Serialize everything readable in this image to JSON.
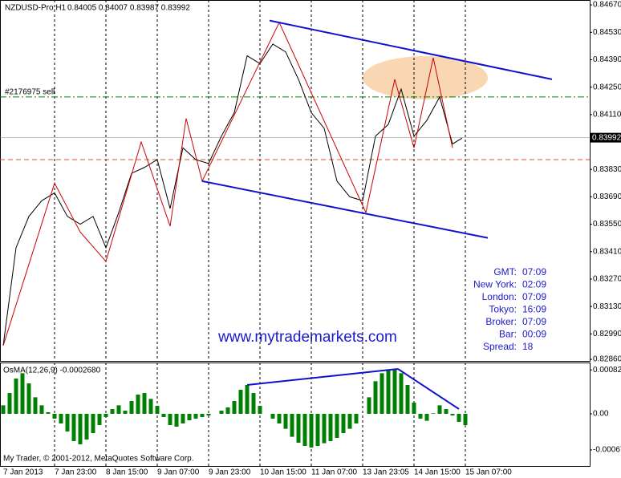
{
  "chart_data": [
    {
      "type": "line",
      "title": "NZDUSD-Pro,H1",
      "subtitle": "0.84005 0.84007 0.83987 0.83992",
      "xlim": [
        -1,
        182.75
      ],
      "ylim": [
        0.82852,
        0.84695
      ],
      "grid": true,
      "xticks": [
        {
          "value": 0,
          "label": "7 Jan 2013"
        },
        {
          "value": 16,
          "label": "7 Jan 23:00"
        },
        {
          "value": 32,
          "label": "8 Jan 15:00"
        },
        {
          "value": 48,
          "label": "9 Jan 07:00"
        },
        {
          "value": 64,
          "label": "9 Jan 23:00"
        },
        {
          "value": 80,
          "label": "10 Jan 15:00"
        },
        {
          "value": 96,
          "label": "11 Jan 07:00"
        },
        {
          "value": 112,
          "label": "13 Jan 23:05"
        },
        {
          "value": 128,
          "label": "14 Jan 15:00"
        },
        {
          "value": 144,
          "label": "15 Jan 07:00"
        }
      ],
      "yticks": [
        {
          "value": 0.8467,
          "label": "0.84670"
        },
        {
          "value": 0.8453,
          "label": "0.84530"
        },
        {
          "value": 0.8439,
          "label": "0.84390"
        },
        {
          "value": 0.8425,
          "label": "0.84250"
        },
        {
          "value": 0.8411,
          "label": "0.84110"
        },
        {
          "value": 0.8383,
          "label": "0.83830"
        },
        {
          "value": 0.8369,
          "label": "0.83690"
        },
        {
          "value": 0.8355,
          "label": "0.83550"
        },
        {
          "value": 0.8341,
          "label": "0.83410"
        },
        {
          "value": 0.8327,
          "label": "0.83270"
        },
        {
          "value": 0.8313,
          "label": "0.83130"
        },
        {
          "value": 0.8299,
          "label": "0.82990"
        },
        {
          "value": 0.8286,
          "label": "0.82860"
        }
      ],
      "last": 0.83992,
      "levels": [
        {
          "name": "#2176975 sell",
          "value": 0.842,
          "color": "#008000"
        },
        {
          "value": 0.8388,
          "color": "#e05020"
        }
      ],
      "series": [
        {
          "color": "#000000",
          "x": [
            0,
            4,
            8,
            12,
            16,
            20,
            24,
            28,
            32,
            36,
            40,
            44,
            48,
            52,
            56,
            60,
            64,
            68,
            72,
            76,
            80,
            84,
            88,
            92,
            96,
            100,
            104,
            108,
            112,
            116,
            120,
            124,
            128,
            132,
            136,
            140,
            143
          ],
          "values": [
            0.8293,
            0.8343,
            0.8359,
            0.8367,
            0.8371,
            0.8359,
            0.8355,
            0.8359,
            0.8343,
            0.8361,
            0.8381,
            0.8384,
            0.8388,
            0.8363,
            0.8394,
            0.8388,
            0.8386,
            0.84,
            0.8412,
            0.8441,
            0.8437,
            0.8447,
            0.8443,
            0.8429,
            0.8412,
            0.8404,
            0.8377,
            0.8369,
            0.8367,
            0.84,
            0.8406,
            0.8424,
            0.84,
            0.8408,
            0.842,
            0.8396,
            0.8399
          ]
        },
        {
          "color": "#cc0000",
          "x": [
            0,
            16,
            24,
            32,
            43,
            52,
            57,
            62,
            86,
            113,
            122,
            128,
            134,
            140
          ],
          "values": [
            0.8293,
            0.8376,
            0.8351,
            0.8336,
            0.8397,
            0.8354,
            0.8409,
            0.8377,
            0.8458,
            0.8361,
            0.8429,
            0.8394,
            0.844,
            0.8394
          ]
        },
        {
          "color": "#1010d0",
          "x": [
            83,
            171
          ],
          "values": [
            0.8459,
            0.8429
          ]
        },
        {
          "color": "#1010d0",
          "x": [
            62,
            151
          ],
          "values": [
            0.8377,
            0.8348
          ]
        }
      ]
    },
    {
      "type": "bar",
      "title": "OsMA(12,26,9) -0.0002680",
      "color": "#008000",
      "xlim": [
        -1,
        182.75
      ],
      "ylim": [
        -0.00099,
        0.00096
      ],
      "yticks": [
        0.000823,
        {
          "value": 0,
          "label": "0.00"
        },
        -0.000674
      ],
      "x": [
        0,
        2,
        4,
        6,
        8,
        10,
        12,
        14,
        16,
        18,
        20,
        22,
        24,
        26,
        28,
        30,
        32,
        34,
        36,
        38,
        40,
        42,
        44,
        46,
        48,
        50,
        52,
        54,
        56,
        58,
        60,
        62,
        64,
        66,
        68,
        70,
        72,
        74,
        76,
        78,
        80,
        82,
        84,
        86,
        88,
        90,
        92,
        94,
        96,
        98,
        100,
        102,
        104,
        106,
        108,
        110,
        112,
        114,
        116,
        118,
        120,
        122,
        124,
        126,
        128,
        130,
        132,
        134,
        136,
        138,
        140,
        142,
        144
      ],
      "values": [
        0.00016,
        0.00039,
        0.00066,
        0.00076,
        0.00057,
        0.00031,
        0.00016,
        3e-05,
        -9e-05,
        -0.00018,
        -0.00033,
        -0.00051,
        -0.00057,
        -0.00048,
        -0.00036,
        -0.00021,
        -6e-05,
        9e-05,
        0.00016,
        6e-05,
        0.00024,
        0.00036,
        0.00039,
        0.00028,
        0.00015,
        -6e-05,
        -0.00021,
        -0.00024,
        -0.00018,
        -0.00012,
        -9e-05,
        -6e-05,
        -3e-05,
        0,
        6e-05,
        0.00012,
        0.00024,
        0.00045,
        0.00054,
        0.00039,
        0.00015,
        0,
        -9e-05,
        -0.00018,
        -0.00028,
        -0.00043,
        -0.00054,
        -0.0006,
        -0.00063,
        -0.0006,
        -0.00055,
        -0.00051,
        -0.00045,
        -0.00036,
        -0.00028,
        -0.00018,
        0,
        0.00031,
        0.00061,
        0.00076,
        0.00081,
        0.00084,
        0.00076,
        0.00054,
        0.00021,
        -9e-05,
        -0.00013,
        1e-05,
        0.00016,
        9e-05,
        -3e-05,
        -0.00015,
        -0.00021
      ],
      "series": [
        {
          "color": "#1010d0",
          "x": [
            76,
            123
          ],
          "values": [
            0.00054,
            0.00084
          ]
        },
        {
          "color": "#1010d0",
          "x": [
            123,
            142
          ],
          "values": [
            0.00084,
            9e-05
          ]
        }
      ]
    }
  ],
  "info": [
    [
      "GMT:",
      "07:09"
    ],
    [
      "New York:",
      "02:09"
    ],
    [
      "London:",
      "07:09"
    ],
    [
      "Tokyo:",
      "16:09"
    ],
    [
      "Broker:",
      "07:09"
    ],
    [
      "Bar:",
      "00:09"
    ],
    [
      "Spread:",
      "18"
    ]
  ],
  "watermark": "www.mytrademarkets.com",
  "footer": "My Trader, © 2001-2012, MetaQuotes Software Corp."
}
